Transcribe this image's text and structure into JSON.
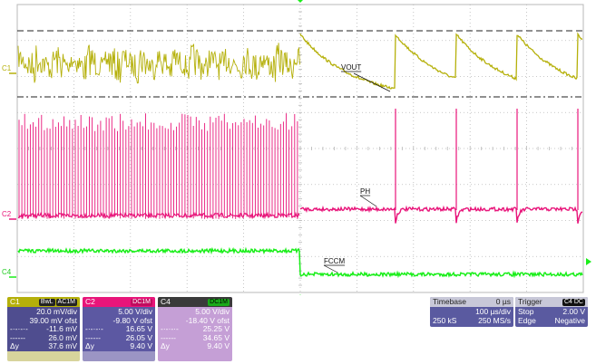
{
  "labels": {
    "vout": "VOUT",
    "ph": "PH",
    "fccm": "FCCM",
    "ch1": "C1",
    "ch2": "C2",
    "ch4": "C4"
  },
  "colors": {
    "c1": "#b5b00a",
    "c2": "#e8157a",
    "c4": "#1aee1a",
    "c1_panel": "#d7d49c",
    "c2_panel": "#9b95c4",
    "c4_panel": "#c59fd6",
    "grid": "#b8b8b8"
  },
  "channels": [
    {
      "name": "C1",
      "badges": [
        "BwL",
        "AC1M"
      ],
      "scale": "20.0 mV/div",
      "offset": "39.00 mV ofst",
      "cursor1_label": "-·-·-·-",
      "cursor1": "-11.6 mV",
      "cursor2_label": "------",
      "cursor2": "26.0 mV",
      "delta_label": "Δy",
      "delta": "37.6 mV"
    },
    {
      "name": "C2",
      "badges": [
        "DC1M"
      ],
      "scale": "5.00 V/div",
      "offset": "-9.80 V ofst",
      "cursor1_label": "-·-·-·-",
      "cursor1": "16.65 V",
      "cursor2_label": "------",
      "cursor2": "26.05 V",
      "delta_label": "Δy",
      "delta": "9.40 V"
    },
    {
      "name": "C4",
      "badges": [
        "DC1M"
      ],
      "scale": "5.00 V/div",
      "offset": "-18.40 V ofst",
      "cursor1_label": "-·-·-·-",
      "cursor1": "25.25 V",
      "cursor2_label": "------",
      "cursor2": "34.65 V",
      "delta_label": "Δy",
      "delta": "9.40 V"
    }
  ],
  "timebase": {
    "title": "Timebase",
    "delay": "0 µs",
    "scale": "100 µs/div",
    "samples": "250 kS",
    "rate": "250 MS/s"
  },
  "trigger": {
    "title": "Trigger",
    "badge": "C4 DC",
    "mode": "Stop",
    "level": "2.00 V",
    "type": "Edge",
    "slope": "Negative"
  }
}
